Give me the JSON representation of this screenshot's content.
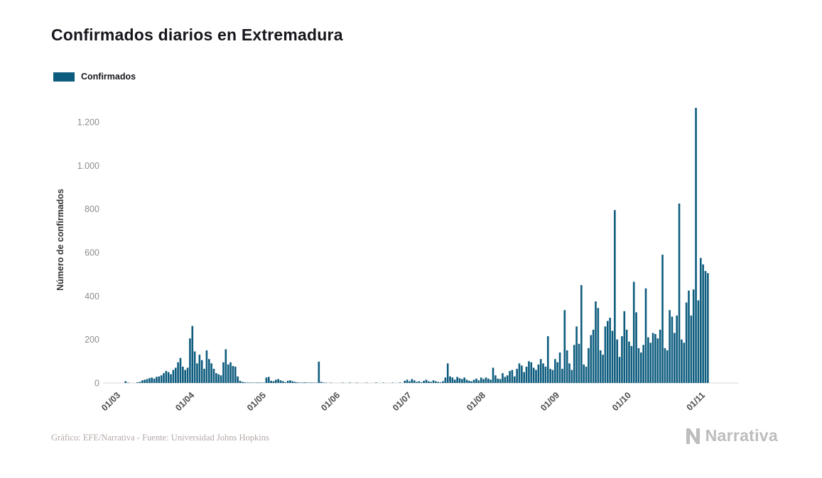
{
  "page": {
    "title": "Confirmados diarios en Extremadura",
    "legend_label": "Confirmados",
    "footer_credit": "Gráfico: EFE/Narrativa - Fuente: Universidad Johns Hopkins",
    "brand": "Narrativa"
  },
  "colors": {
    "bar": "#0d5c7e",
    "title_text": "#16161d",
    "y_tick_text": "#8c8c8c",
    "x_tick_text": "#4d4d4d",
    "axis_label_text": "#333333",
    "baseline": "#d9d9d9",
    "footer_text": "#b3a9a7",
    "brand_text": "#bdbdbd"
  },
  "chart_data": {
    "type": "bar",
    "title": "Confirmados diarios en Extremadura",
    "xlabel": "",
    "ylabel": "Número de confirmados",
    "legend": [
      "Confirmados"
    ],
    "legend_position": "top-left",
    "grid": false,
    "bar_color": "#0d5c7e",
    "x_start": "01/03",
    "frequency": "daily",
    "x_tick_labels": [
      "01/03",
      "01/04",
      "01/05",
      "01/06",
      "01/07",
      "01/08",
      "01/09",
      "01/10",
      "01/11"
    ],
    "x_tick_day_offsets": [
      0,
      31,
      61,
      92,
      122,
      153,
      184,
      214,
      245
    ],
    "y_tick_labels": [
      "0",
      "200",
      "400",
      "600",
      "800",
      "1.000",
      "1.200"
    ],
    "y_tick_values": [
      0,
      200,
      400,
      600,
      800,
      1000,
      1200
    ],
    "ylim": [
      0,
      1300
    ],
    "values": [
      0,
      0,
      8,
      2,
      0,
      0,
      0,
      3,
      5,
      12,
      15,
      18,
      22,
      25,
      20,
      28,
      30,
      35,
      45,
      55,
      50,
      40,
      60,
      70,
      95,
      115,
      75,
      60,
      70,
      205,
      262,
      145,
      90,
      130,
      105,
      65,
      150,
      110,
      90,
      65,
      45,
      40,
      35,
      95,
      155,
      85,
      95,
      78,
      75,
      30,
      10,
      5,
      3,
      2,
      2,
      1,
      1,
      2,
      2,
      1,
      1,
      25,
      28,
      10,
      8,
      15,
      18,
      12,
      8,
      3,
      10,
      12,
      8,
      5,
      3,
      2,
      2,
      3,
      2,
      1,
      2,
      1,
      1,
      98,
      5,
      2,
      1,
      0,
      1,
      0,
      0,
      0,
      0,
      1,
      0,
      0,
      2,
      0,
      0,
      1,
      0,
      0,
      0,
      1,
      0,
      0,
      0,
      2,
      0,
      0,
      1,
      0,
      0,
      0,
      1,
      0,
      0,
      2,
      0,
      10,
      15,
      8,
      18,
      12,
      5,
      8,
      3,
      10,
      15,
      8,
      5,
      12,
      8,
      5,
      3,
      8,
      25,
      90,
      30,
      25,
      15,
      28,
      22,
      18,
      25,
      15,
      10,
      8,
      15,
      20,
      12,
      25,
      18,
      25,
      20,
      15,
      70,
      35,
      20,
      18,
      45,
      28,
      35,
      55,
      60,
      30,
      65,
      90,
      80,
      50,
      75,
      100,
      95,
      70,
      60,
      85,
      110,
      90,
      75,
      215,
      65,
      60,
      110,
      95,
      140,
      65,
      335,
      150,
      90,
      60,
      175,
      260,
      180,
      450,
      85,
      75,
      160,
      220,
      245,
      375,
      345,
      150,
      130,
      260,
      285,
      300,
      240,
      795,
      200,
      120,
      215,
      330,
      245,
      190,
      170,
      465,
      325,
      160,
      140,
      175,
      435,
      210,
      185,
      230,
      225,
      205,
      245,
      590,
      160,
      150,
      335,
      305,
      230,
      310,
      825,
      200,
      185,
      370,
      425,
      310,
      430,
      1265,
      380,
      575,
      545,
      515,
      505
    ]
  }
}
